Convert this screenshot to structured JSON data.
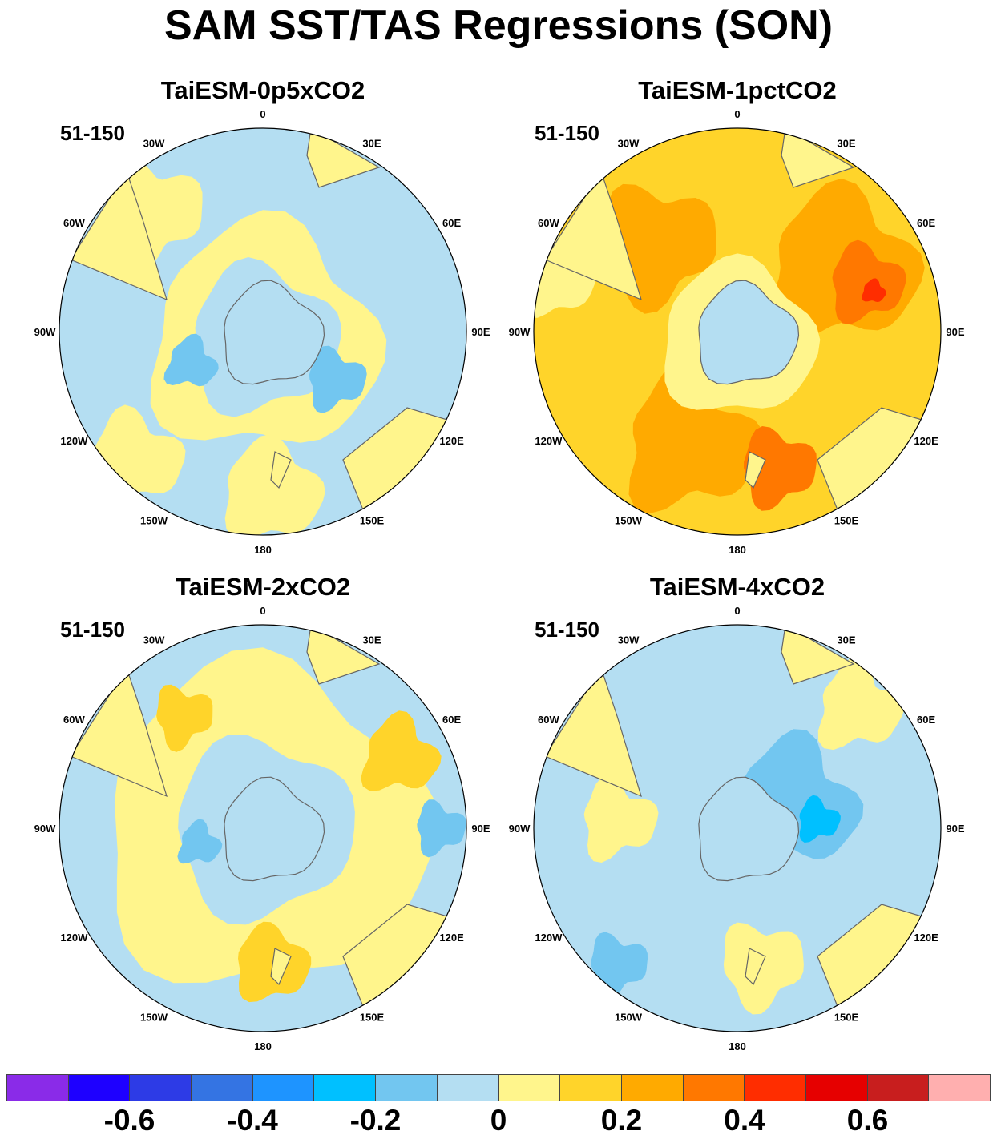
{
  "title": "SAM SST/TAS Regressions (SON)",
  "panels": [
    {
      "title": "TaiESM-0p5xCO2",
      "range_label": "51-150",
      "style": "weak"
    },
    {
      "title": "TaiESM-1pctCO2",
      "range_label": "51-150",
      "style": "warm"
    },
    {
      "title": "TaiESM-2xCO2",
      "range_label": "51-150",
      "style": "mixed"
    },
    {
      "title": "TaiESM-4xCO2",
      "range_label": "51-150",
      "style": "cool"
    }
  ],
  "longitude_labels": {
    "0": "0",
    "30E": "30E",
    "60E": "60E",
    "90E": "90E",
    "120E": "120E",
    "150E": "150E",
    "180": "180",
    "150W": "150W",
    "120W": "120W",
    "90W": "90W",
    "60W": "60W",
    "30W": "30W"
  },
  "colorbar": {
    "colors": [
      "#8a2be8",
      "#1e00ff",
      "#2d3be6",
      "#3474e3",
      "#1e94ff",
      "#00c0ff",
      "#72c6f0",
      "#b4def2",
      "#fff58c",
      "#ffd42a",
      "#ffaa00",
      "#ff7800",
      "#ff2d00",
      "#e60000",
      "#c81e1e",
      "#ffafaf"
    ],
    "tick_labels": [
      "-0.6",
      "-0.4",
      "-0.2",
      "0",
      "0.2",
      "0.4",
      "0.6"
    ]
  }
}
